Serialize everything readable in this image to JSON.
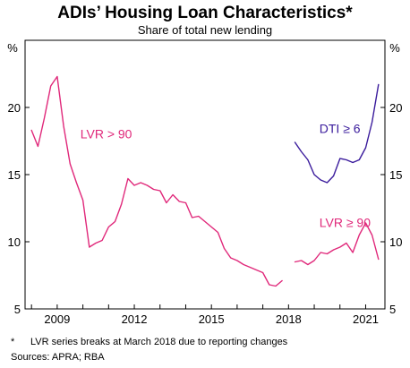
{
  "chart_data": {
    "type": "line",
    "title": "ADIs’ Housing Loan Characteristics*",
    "subtitle": "Share of total new lending",
    "y_unit_left": "%",
    "y_unit_right": "%",
    "ylim": [
      5,
      25
    ],
    "xlim": [
      2007.75,
      2021.75
    ],
    "yticks": [
      5,
      10,
      15,
      20
    ],
    "ytick_labels": [
      "5",
      "10",
      "15",
      "20"
    ],
    "xticks": [
      2009,
      2012,
      2015,
      2018,
      2021
    ],
    "xtick_labels": [
      "2009",
      "2012",
      "2015",
      "2018",
      "2021"
    ],
    "grid": false,
    "series": [
      {
        "name": "LVR > 90",
        "color": "#e0287a",
        "segments": [
          {
            "x": [
              2008.0,
              2008.25,
              2008.5,
              2008.75,
              2009.0,
              2009.25,
              2009.5,
              2009.75,
              2010.0,
              2010.25,
              2010.5,
              2010.75,
              2011.0,
              2011.25,
              2011.5,
              2011.75,
              2012.0,
              2012.25,
              2012.5,
              2012.75,
              2013.0,
              2013.25,
              2013.5,
              2013.75,
              2014.0,
              2014.25,
              2014.5,
              2014.75,
              2015.0,
              2015.25,
              2015.5,
              2015.75,
              2016.0,
              2016.25,
              2016.5,
              2016.75,
              2017.0,
              2017.25,
              2017.5,
              2017.75
            ],
            "y": [
              18.3,
              17.1,
              19.2,
              21.6,
              22.3,
              18.6,
              15.8,
              14.4,
              13.1,
              9.6,
              9.9,
              10.1,
              11.1,
              11.5,
              12.8,
              14.7,
              14.2,
              14.4,
              14.2,
              13.9,
              13.8,
              12.9,
              13.5,
              13.0,
              12.9,
              11.8,
              11.9,
              11.5,
              11.1,
              10.7,
              9.5,
              8.8,
              8.6,
              8.3,
              8.1,
              7.9,
              7.7,
              6.8,
              6.7,
              7.1
            ]
          },
          {
            "x": [
              2018.25,
              2018.5,
              2018.75,
              2019.0,
              2019.25,
              2019.5,
              2019.75,
              2020.0,
              2020.25,
              2020.5,
              2020.75,
              2021.0,
              2021.25,
              2021.5
            ],
            "y": [
              8.5,
              8.6,
              8.3,
              8.6,
              9.2,
              9.1,
              9.4,
              9.6,
              9.9,
              9.2,
              10.5,
              11.4,
              10.5,
              8.7
            ]
          }
        ]
      },
      {
        "name": "DTI ≥ 6",
        "color": "#3a1b9c",
        "segments": [
          {
            "x": [
              2018.25,
              2018.5,
              2018.75,
              2019.0,
              2019.25,
              2019.5,
              2019.75,
              2020.0,
              2020.25,
              2020.5,
              2020.75,
              2021.0,
              2021.25,
              2021.5
            ],
            "y": [
              17.4,
              16.7,
              16.1,
              15.0,
              14.6,
              14.4,
              14.9,
              16.2,
              16.1,
              15.9,
              16.1,
              17.0,
              18.9,
              21.7
            ]
          }
        ]
      }
    ],
    "annotations": [
      {
        "text": "LVR > 90",
        "x": 2009.9,
        "y": 17.7,
        "color": "#e0287a"
      },
      {
        "text": "LVR ≥ 90",
        "x": 2019.2,
        "y": 11.1,
        "color": "#e0287a"
      },
      {
        "text": "DTI ≥ 6",
        "x": 2019.2,
        "y": 18.1,
        "color": "#3a1b9c"
      }
    ],
    "footnote_marker": "*",
    "footnote": "LVR series breaks at March 2018 due to reporting changes",
    "sources": "Sources: APRA; RBA"
  }
}
